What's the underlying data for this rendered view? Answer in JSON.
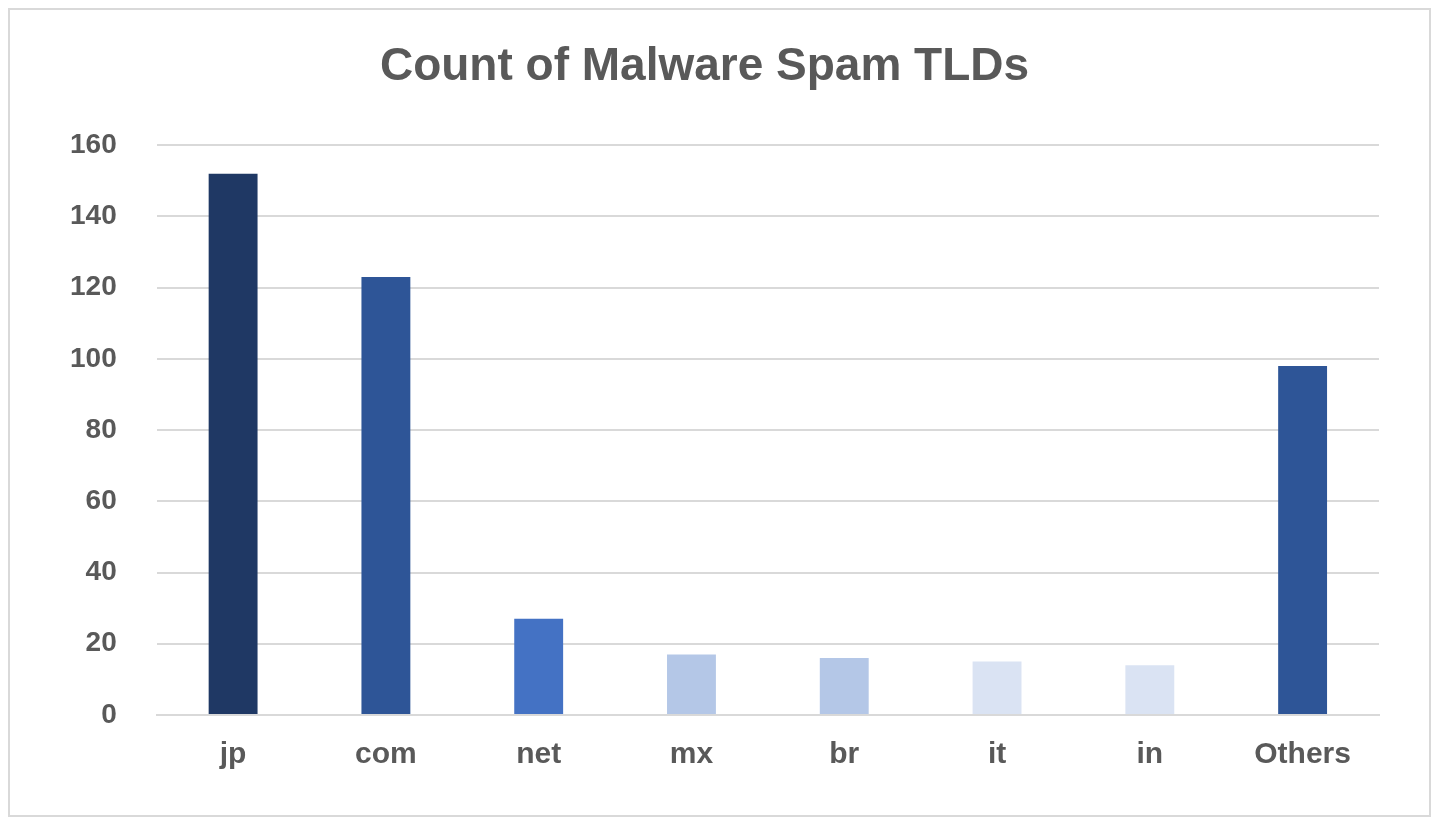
{
  "chart_data": {
    "type": "bar",
    "title": "Count of Malware Spam TLDs",
    "categories": [
      "jp",
      "com",
      "net",
      "mx",
      "br",
      "it",
      "in",
      "Others"
    ],
    "values": [
      152,
      123,
      27,
      17,
      16,
      15,
      14,
      98
    ],
    "colors": [
      "#1f3864",
      "#2e5597",
      "#4472c4",
      "#b4c7e7",
      "#b4c7e7",
      "#dae3f3",
      "#dae3f3",
      "#2e5597"
    ],
    "ylim": [
      0,
      160
    ],
    "yticks": [
      0,
      20,
      40,
      60,
      80,
      100,
      120,
      140,
      160
    ],
    "grid": "y",
    "legend": false
  }
}
